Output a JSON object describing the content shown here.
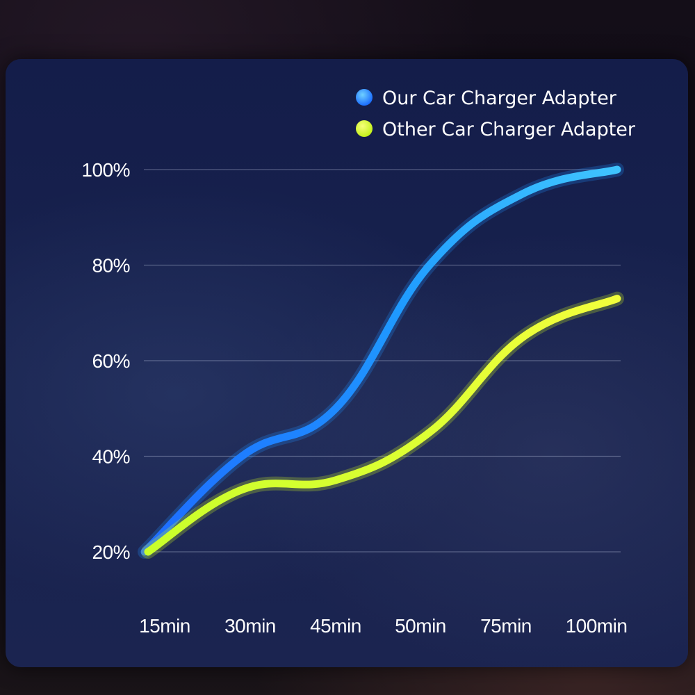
{
  "chart_data": {
    "type": "line",
    "title": "",
    "xlabel": "",
    "ylabel": "",
    "categories": [
      "15min",
      "30min",
      "45min",
      "50min",
      "75min",
      "100min"
    ],
    "y_ticks": [
      "20%",
      "40%",
      "60%",
      "80%",
      "100%"
    ],
    "ylim": [
      20,
      100
    ],
    "grid": true,
    "legend_position": "top-right",
    "series": [
      {
        "name": "Our Car Charger Adapter",
        "color": "#1e90ff",
        "values": [
          20,
          40,
          50,
          80,
          95,
          100
        ]
      },
      {
        "name": "Other Car Charger Adapter",
        "color": "#d8ff1a",
        "values": [
          20,
          33,
          35,
          45,
          65,
          73
        ]
      }
    ]
  }
}
